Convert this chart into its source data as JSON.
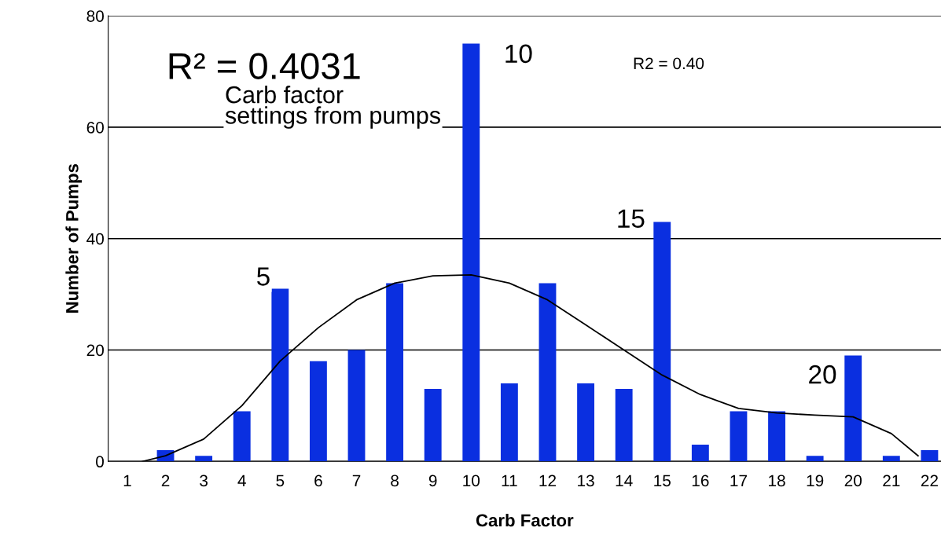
{
  "chart_data": {
    "type": "bar",
    "xlabel": "Carb Factor",
    "ylabel": "Number of Pumps",
    "x": [
      1,
      2,
      3,
      4,
      5,
      6,
      7,
      8,
      9,
      10,
      11,
      12,
      13,
      14,
      15,
      16,
      17,
      18,
      19,
      20,
      21,
      22
    ],
    "xlim": [
      0.5,
      22.3
    ],
    "xticks": [
      1,
      2,
      3,
      4,
      5,
      6,
      7,
      8,
      9,
      10,
      11,
      12,
      13,
      14,
      15,
      16,
      17,
      18,
      19,
      20,
      21,
      22
    ],
    "ylim": [
      0,
      80
    ],
    "yticks": [
      0,
      20,
      40,
      60,
      80
    ],
    "grid": "y",
    "series": [
      {
        "color": "#0a2fe0",
        "values": [
          0,
          2,
          1,
          9,
          31,
          18,
          20,
          32,
          13,
          75,
          14,
          32,
          14,
          13,
          43,
          3,
          9,
          9,
          1,
          19,
          1,
          2
        ]
      },
      {
        "type": "line",
        "color": "#000000",
        "x": [
          1.4,
          2,
          3,
          4,
          5,
          6,
          7,
          8,
          9,
          10,
          11,
          12,
          13,
          14,
          15,
          16,
          17,
          18,
          19,
          20,
          21,
          21.7
        ],
        "values": [
          0,
          1,
          4,
          10,
          18,
          24,
          29,
          32,
          33.3,
          33.5,
          32,
          29,
          24.5,
          20,
          15.5,
          12,
          9.5,
          8.7,
          8.3,
          8,
          5,
          1
        ]
      }
    ],
    "annotations": [
      "R² = 0.4031",
      "Carb factor\nsettings from pumps",
      "R2 = 0.40",
      "5",
      "10",
      "15",
      "20"
    ]
  }
}
